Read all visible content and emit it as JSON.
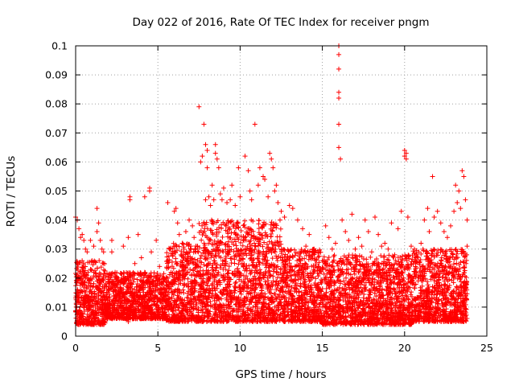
{
  "chart_data": {
    "type": "scatter",
    "title": "Day 022 of 2016, Rate Of TEC Index for receiver pngm",
    "xlabel": "GPS time / hours",
    "ylabel": "ROTI / TECUs",
    "xlim": [
      0,
      25
    ],
    "ylim": [
      0,
      0.1
    ],
    "grid": true,
    "marker": "plus",
    "series_color": "#ff0000",
    "x_ticks": [
      {
        "value": 0,
        "label": "0"
      },
      {
        "value": 5,
        "label": "5"
      },
      {
        "value": 10,
        "label": "10"
      },
      {
        "value": 15,
        "label": "15"
      },
      {
        "value": 20,
        "label": "20"
      },
      {
        "value": 25,
        "label": "25"
      }
    ],
    "y_ticks": [
      {
        "value": 0,
        "label": "0"
      },
      {
        "value": 0.01,
        "label": "0.01"
      },
      {
        "value": 0.02,
        "label": "0.02"
      },
      {
        "value": 0.03,
        "label": "0.03"
      },
      {
        "value": 0.04,
        "label": "0.04"
      },
      {
        "value": 0.05,
        "label": "0.05"
      },
      {
        "value": 0.06,
        "label": "0.06"
      },
      {
        "value": 0.07,
        "label": "0.07"
      },
      {
        "value": 0.08,
        "label": "0.08"
      },
      {
        "value": 0.09,
        "label": "0.09"
      },
      {
        "value": 0.1,
        "label": "0.1"
      }
    ],
    "density_envelope": [
      {
        "x_start": 0.0,
        "x_end": 1.8,
        "y_min": 0.004,
        "y_max": 0.026
      },
      {
        "x_start": 1.8,
        "x_end": 5.5,
        "y_min": 0.006,
        "y_max": 0.022
      },
      {
        "x_start": 5.5,
        "x_end": 7.5,
        "y_min": 0.005,
        "y_max": 0.032
      },
      {
        "x_start": 7.5,
        "x_end": 12.5,
        "y_min": 0.005,
        "y_max": 0.04
      },
      {
        "x_start": 12.5,
        "x_end": 15.0,
        "y_min": 0.005,
        "y_max": 0.03
      },
      {
        "x_start": 15.0,
        "x_end": 20.5,
        "y_min": 0.004,
        "y_max": 0.028
      },
      {
        "x_start": 20.5,
        "x_end": 23.8,
        "y_min": 0.005,
        "y_max": 0.03
      }
    ],
    "points": [
      [
        0.0,
        0.041
      ],
      [
        0.1,
        0.04
      ],
      [
        0.2,
        0.037
      ],
      [
        0.3,
        0.034
      ],
      [
        0.4,
        0.035
      ],
      [
        0.5,
        0.033
      ],
      [
        0.6,
        0.03
      ],
      [
        0.7,
        0.029
      ],
      [
        0.9,
        0.033
      ],
      [
        1.1,
        0.031
      ],
      [
        1.3,
        0.036
      ],
      [
        1.3,
        0.044
      ],
      [
        1.4,
        0.039
      ],
      [
        1.5,
        0.033
      ],
      [
        1.6,
        0.03
      ],
      [
        1.7,
        0.029
      ],
      [
        0.1,
        0.012
      ],
      [
        0.2,
        0.015
      ],
      [
        0.3,
        0.008
      ],
      [
        0.4,
        0.018
      ],
      [
        0.5,
        0.011
      ],
      [
        0.6,
        0.02
      ],
      [
        0.7,
        0.014
      ],
      [
        0.8,
        0.009
      ],
      [
        0.9,
        0.016
      ],
      [
        1.0,
        0.012
      ],
      [
        1.1,
        0.022
      ],
      [
        1.2,
        0.01
      ],
      [
        1.3,
        0.017
      ],
      [
        1.4,
        0.013
      ],
      [
        1.5,
        0.019
      ],
      [
        1.6,
        0.011
      ],
      [
        1.7,
        0.015
      ],
      [
        0.2,
        0.005
      ],
      [
        0.6,
        0.006
      ],
      [
        1.0,
        0.005
      ],
      [
        2.2,
        0.033
      ],
      [
        2.2,
        0.029
      ],
      [
        2.3,
        0.018
      ],
      [
        2.3,
        0.012
      ],
      [
        2.4,
        0.022
      ],
      [
        2.9,
        0.031
      ],
      [
        3.0,
        0.02
      ],
      [
        3.1,
        0.015
      ],
      [
        3.3,
        0.048
      ],
      [
        3.3,
        0.047
      ],
      [
        3.2,
        0.005
      ],
      [
        3.2,
        0.034
      ],
      [
        3.5,
        0.012
      ],
      [
        3.6,
        0.025
      ],
      [
        3.7,
        0.017
      ],
      [
        3.8,
        0.035
      ],
      [
        4.0,
        0.027
      ],
      [
        4.1,
        0.014
      ],
      [
        4.2,
        0.022
      ],
      [
        4.2,
        0.048
      ],
      [
        4.5,
        0.051
      ],
      [
        4.5,
        0.05
      ],
      [
        4.6,
        0.029
      ],
      [
        4.7,
        0.019
      ],
      [
        4.8,
        0.011
      ],
      [
        4.9,
        0.033
      ],
      [
        5.0,
        0.016
      ],
      [
        5.1,
        0.024
      ],
      [
        5.6,
        0.046
      ],
      [
        5.7,
        0.03
      ],
      [
        5.8,
        0.022
      ],
      [
        5.9,
        0.015
      ],
      [
        6.0,
        0.043
      ],
      [
        6.1,
        0.044
      ],
      [
        6.2,
        0.039
      ],
      [
        6.3,
        0.035
      ],
      [
        6.4,
        0.028
      ],
      [
        6.5,
        0.032
      ],
      [
        6.6,
        0.021
      ],
      [
        6.7,
        0.036
      ],
      [
        6.8,
        0.026
      ],
      [
        6.9,
        0.04
      ],
      [
        7.0,
        0.031
      ],
      [
        7.1,
        0.038
      ],
      [
        7.2,
        0.034
      ],
      [
        7.3,
        0.029
      ],
      [
        7.5,
        0.079
      ],
      [
        7.6,
        0.06
      ],
      [
        7.7,
        0.062
      ],
      [
        7.8,
        0.073
      ],
      [
        7.9,
        0.066
      ],
      [
        8.0,
        0.058
      ],
      [
        8.0,
        0.064
      ],
      [
        7.9,
        0.047
      ],
      [
        8.1,
        0.048
      ],
      [
        8.2,
        0.045
      ],
      [
        8.3,
        0.052
      ],
      [
        8.4,
        0.047
      ],
      [
        8.5,
        0.066
      ],
      [
        8.5,
        0.063
      ],
      [
        8.6,
        0.061
      ],
      [
        8.7,
        0.058
      ],
      [
        8.8,
        0.049
      ],
      [
        8.9,
        0.047
      ],
      [
        9.0,
        0.051
      ],
      [
        9.2,
        0.046
      ],
      [
        9.4,
        0.047
      ],
      [
        9.5,
        0.052
      ],
      [
        9.7,
        0.045
      ],
      [
        9.9,
        0.058
      ],
      [
        10.0,
        0.048
      ],
      [
        10.3,
        0.062
      ],
      [
        10.5,
        0.057
      ],
      [
        10.6,
        0.05
      ],
      [
        10.7,
        0.047
      ],
      [
        10.9,
        0.073
      ],
      [
        11.1,
        0.052
      ],
      [
        11.2,
        0.058
      ],
      [
        11.4,
        0.055
      ],
      [
        11.5,
        0.054
      ],
      [
        11.7,
        0.048
      ],
      [
        11.8,
        0.063
      ],
      [
        11.9,
        0.061
      ],
      [
        12.0,
        0.058
      ],
      [
        12.1,
        0.05
      ],
      [
        12.2,
        0.052
      ],
      [
        12.3,
        0.046
      ],
      [
        12.5,
        0.043
      ],
      [
        12.7,
        0.041
      ],
      [
        13.0,
        0.045
      ],
      [
        13.2,
        0.044
      ],
      [
        13.5,
        0.04
      ],
      [
        13.8,
        0.037
      ],
      [
        14.0,
        0.031
      ],
      [
        14.2,
        0.035
      ],
      [
        14.5,
        0.03
      ],
      [
        14.8,
        0.029
      ],
      [
        15.0,
        0.026
      ],
      [
        15.2,
        0.038
      ],
      [
        15.4,
        0.034
      ],
      [
        15.6,
        0.03
      ],
      [
        15.8,
        0.032
      ],
      [
        16.0,
        0.1
      ],
      [
        16.0,
        0.097
      ],
      [
        16.0,
        0.092
      ],
      [
        16.0,
        0.084
      ],
      [
        16.0,
        0.082
      ],
      [
        16.0,
        0.073
      ],
      [
        16.0,
        0.065
      ],
      [
        16.1,
        0.061
      ],
      [
        16.2,
        0.04
      ],
      [
        16.4,
        0.036
      ],
      [
        16.6,
        0.033
      ],
      [
        16.8,
        0.042
      ],
      [
        17.0,
        0.03
      ],
      [
        17.2,
        0.034
      ],
      [
        17.4,
        0.031
      ],
      [
        17.6,
        0.04
      ],
      [
        17.8,
        0.036
      ],
      [
        18.0,
        0.029
      ],
      [
        18.2,
        0.041
      ],
      [
        18.4,
        0.035
      ],
      [
        18.6,
        0.031
      ],
      [
        18.8,
        0.032
      ],
      [
        19.0,
        0.03
      ],
      [
        19.2,
        0.039
      ],
      [
        19.4,
        0.028
      ],
      [
        19.6,
        0.037
      ],
      [
        19.8,
        0.043
      ],
      [
        20.0,
        0.064
      ],
      [
        20.0,
        0.062
      ],
      [
        20.1,
        0.061
      ],
      [
        20.1,
        0.063
      ],
      [
        20.2,
        0.041
      ],
      [
        20.4,
        0.031
      ],
      [
        20.6,
        0.03
      ],
      [
        20.8,
        0.027
      ],
      [
        21.0,
        0.032
      ],
      [
        21.2,
        0.04
      ],
      [
        21.4,
        0.044
      ],
      [
        21.5,
        0.036
      ],
      [
        21.7,
        0.055
      ],
      [
        21.8,
        0.041
      ],
      [
        22.0,
        0.043
      ],
      [
        22.2,
        0.039
      ],
      [
        22.4,
        0.036
      ],
      [
        22.6,
        0.034
      ],
      [
        22.8,
        0.038
      ],
      [
        23.0,
        0.043
      ],
      [
        23.1,
        0.052
      ],
      [
        23.2,
        0.046
      ],
      [
        23.3,
        0.05
      ],
      [
        23.4,
        0.044
      ],
      [
        23.5,
        0.057
      ],
      [
        23.6,
        0.055
      ],
      [
        23.7,
        0.047
      ],
      [
        23.8,
        0.04
      ],
      [
        23.8,
        0.031
      ]
    ]
  }
}
